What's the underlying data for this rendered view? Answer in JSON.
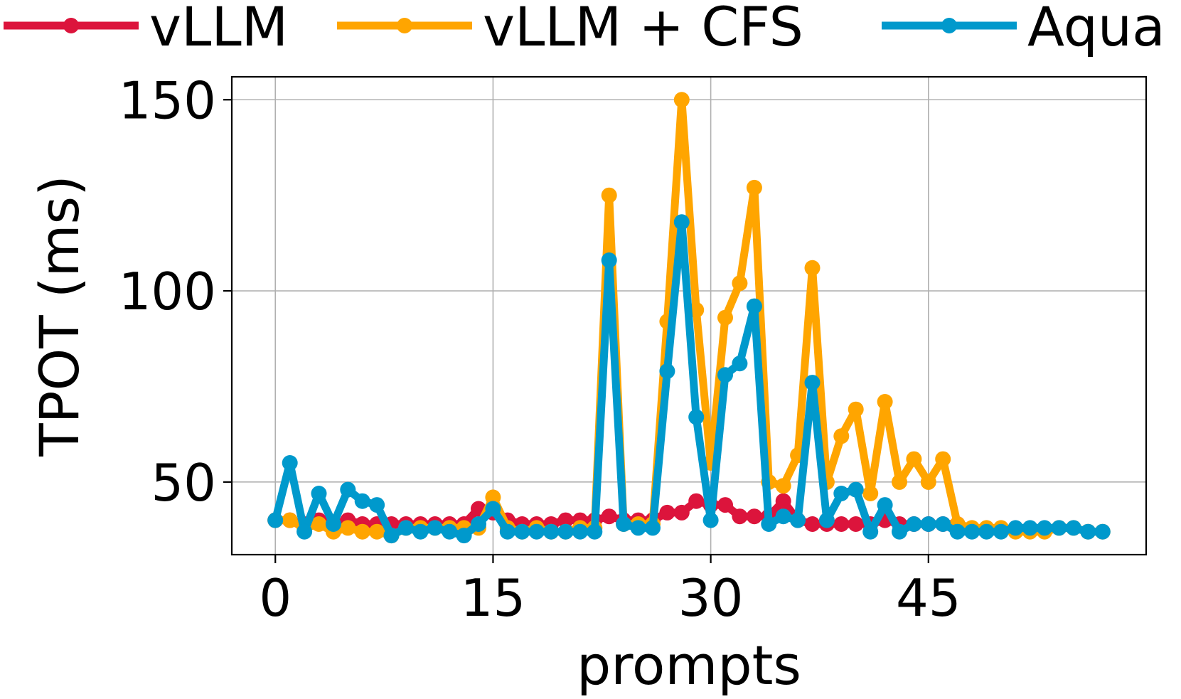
{
  "chart_data": {
    "type": "line",
    "xlabel": "prompts",
    "ylabel": "TPOT (ms)",
    "xlim": [
      -3,
      60
    ],
    "ylim": [
      31,
      156
    ],
    "xticks": [
      0,
      15,
      30,
      45
    ],
    "yticks": [
      50,
      100,
      150
    ],
    "grid": true,
    "legend_position": "top",
    "series": [
      {
        "name": "vLLM",
        "color": "#DC143C",
        "x": [
          0,
          1,
          2,
          3,
          4,
          5,
          6,
          7,
          8,
          9,
          10,
          11,
          12,
          13,
          14,
          15,
          16,
          17,
          18,
          19,
          20,
          21,
          22,
          23,
          24,
          25,
          26,
          27,
          28,
          29,
          30,
          31,
          32,
          33,
          34,
          35,
          36,
          37,
          38,
          39,
          40,
          41,
          42,
          43,
          44,
          45,
          46,
          47
        ],
        "y": [
          40,
          40,
          39,
          40,
          39,
          40,
          39,
          39,
          39,
          39,
          39,
          39,
          39,
          39,
          43,
          42,
          40,
          39,
          39,
          39,
          40,
          40,
          40,
          41,
          40,
          40,
          40,
          42,
          42,
          45,
          44,
          44,
          41,
          41,
          41,
          45,
          40,
          39,
          39,
          39,
          39,
          39,
          40,
          39,
          39,
          39,
          39,
          39
        ]
      },
      {
        "name": "vLLM + CFS",
        "color": "#FFA500",
        "x": [
          0,
          1,
          2,
          3,
          4,
          5,
          6,
          7,
          8,
          9,
          10,
          11,
          12,
          13,
          14,
          15,
          16,
          17,
          18,
          19,
          20,
          21,
          22,
          23,
          24,
          25,
          26,
          27,
          28,
          29,
          30,
          31,
          32,
          33,
          34,
          35,
          36,
          37,
          38,
          39,
          40,
          41,
          42,
          43,
          44,
          45,
          46,
          47,
          48,
          49,
          50,
          51,
          52,
          53,
          54,
          55,
          56,
          57
        ],
        "y": [
          40,
          40,
          38,
          39,
          37,
          38,
          37,
          37,
          36,
          38,
          38,
          38,
          38,
          38,
          38,
          46,
          38,
          37,
          38,
          37,
          37,
          38,
          38,
          125,
          39,
          39,
          39,
          92,
          150,
          95,
          55,
          93,
          102,
          127,
          50,
          49,
          57,
          106,
          50,
          62,
          69,
          47,
          71,
          50,
          56,
          50,
          56,
          39,
          38,
          38,
          38,
          37,
          37,
          37,
          38,
          38,
          37,
          37
        ]
      },
      {
        "name": "Aqua",
        "color": "#0099CC",
        "x": [
          0,
          1,
          2,
          3,
          4,
          5,
          6,
          7,
          8,
          9,
          10,
          11,
          12,
          13,
          14,
          15,
          16,
          17,
          18,
          19,
          20,
          21,
          22,
          23,
          24,
          25,
          26,
          27,
          28,
          29,
          30,
          31,
          32,
          33,
          34,
          35,
          36,
          37,
          38,
          39,
          40,
          41,
          42,
          43,
          44,
          45,
          46,
          47,
          48,
          49,
          50,
          51,
          52,
          53,
          54,
          55,
          56,
          57
        ],
        "y": [
          40,
          55,
          37,
          47,
          39,
          48,
          45,
          44,
          36,
          38,
          37,
          38,
          37,
          36,
          39,
          43,
          37,
          37,
          37,
          37,
          37,
          37,
          37,
          108,
          39,
          38,
          38,
          79,
          118,
          67,
          40,
          78,
          81,
          96,
          39,
          41,
          40,
          76,
          40,
          47,
          48,
          37,
          44,
          37,
          39,
          39,
          39,
          37,
          37,
          37,
          37,
          38,
          38,
          38,
          38,
          38,
          37,
          37
        ]
      }
    ]
  }
}
